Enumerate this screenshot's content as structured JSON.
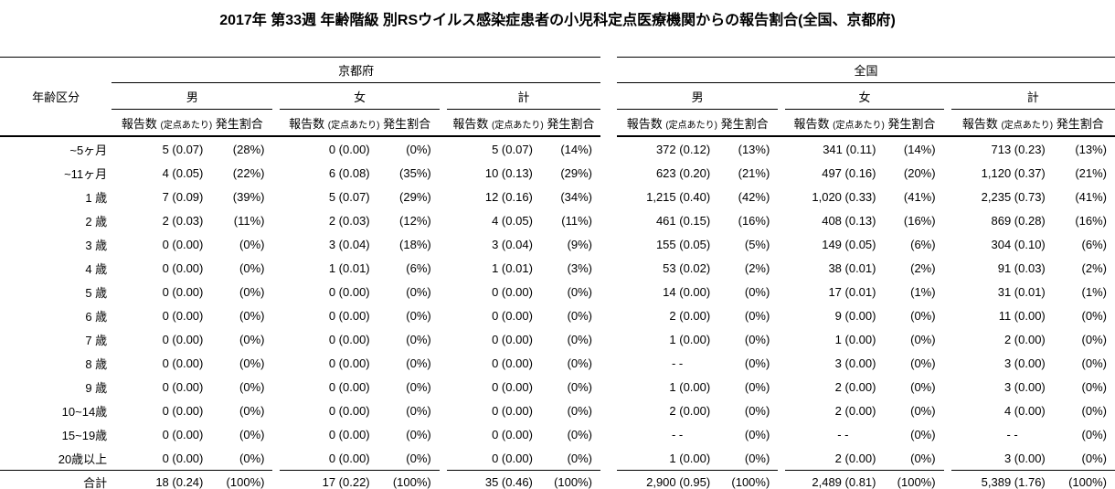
{
  "title": "2017年 第33週 年齢階級 別RSウイルス感染症患者の小児科定点医療機関からの報告割合(全国、京都府)",
  "table": {
    "age_header": "年齢区分",
    "region_kyoto": "京都府",
    "region_national": "全国",
    "gender_male": "男",
    "gender_female": "女",
    "gender_total": "計",
    "subheader_count": "報告数",
    "subheader_per": "(定点あたり)",
    "subheader_ratio": "発生割合"
  },
  "chart_data": {
    "type": "table",
    "title": "2017年 第33週 年齢階級 別RSウイルス感染症患者の小児科定点医療機関からの報告割合(全国、京都府)",
    "row_header": "年齢区分",
    "column_groups": [
      "京都府 男",
      "京都府 女",
      "京都府 計",
      "全国 男",
      "全国 女",
      "全国 計"
    ],
    "columns_per_group": [
      "報告数 (定点あたり)",
      "発生割合"
    ],
    "categories": [
      "~5ヶ月",
      "~11ヶ月",
      "1 歳",
      "2 歳",
      "3 歳",
      "4 歳",
      "5 歳",
      "6 歳",
      "7 歳",
      "8 歳",
      "9 歳",
      "10~14歳",
      "15~19歳",
      "20歳以上",
      "合計"
    ],
    "series": [
      {
        "name": "京都府 男 報告数(定点あたり)",
        "values": [
          "5 (0.07)",
          "4 (0.05)",
          "7 (0.09)",
          "2 (0.03)",
          "0 (0.00)",
          "0 (0.00)",
          "0 (0.00)",
          "0 (0.00)",
          "0 (0.00)",
          "0 (0.00)",
          "0 (0.00)",
          "0 (0.00)",
          "0 (0.00)",
          "0 (0.00)",
          "18 (0.24)"
        ]
      },
      {
        "name": "京都府 男 発生割合",
        "values": [
          "(28%)",
          "(22%)",
          "(39%)",
          "(11%)",
          "(0%)",
          "(0%)",
          "(0%)",
          "(0%)",
          "(0%)",
          "(0%)",
          "(0%)",
          "(0%)",
          "(0%)",
          "(0%)",
          "(100%)"
        ]
      },
      {
        "name": "京都府 女 報告数(定点あたり)",
        "values": [
          "0 (0.00)",
          "6 (0.08)",
          "5 (0.07)",
          "2 (0.03)",
          "3 (0.04)",
          "1 (0.01)",
          "0 (0.00)",
          "0 (0.00)",
          "0 (0.00)",
          "0 (0.00)",
          "0 (0.00)",
          "0 (0.00)",
          "0 (0.00)",
          "0 (0.00)",
          "17 (0.22)"
        ]
      },
      {
        "name": "京都府 女 発生割合",
        "values": [
          "(0%)",
          "(35%)",
          "(29%)",
          "(12%)",
          "(18%)",
          "(6%)",
          "(0%)",
          "(0%)",
          "(0%)",
          "(0%)",
          "(0%)",
          "(0%)",
          "(0%)",
          "(0%)",
          "(100%)"
        ]
      },
      {
        "name": "京都府 計 報告数(定点あたり)",
        "values": [
          "5 (0.07)",
          "10 (0.13)",
          "12 (0.16)",
          "4 (0.05)",
          "3 (0.04)",
          "1 (0.01)",
          "0 (0.00)",
          "0 (0.00)",
          "0 (0.00)",
          "0 (0.00)",
          "0 (0.00)",
          "0 (0.00)",
          "0 (0.00)",
          "0 (0.00)",
          "35 (0.46)"
        ]
      },
      {
        "name": "京都府 計 発生割合",
        "values": [
          "(14%)",
          "(29%)",
          "(34%)",
          "(11%)",
          "(9%)",
          "(3%)",
          "(0%)",
          "(0%)",
          "(0%)",
          "(0%)",
          "(0%)",
          "(0%)",
          "(0%)",
          "(0%)",
          "(100%)"
        ]
      },
      {
        "name": "全国 男 報告数(定点あたり)",
        "values": [
          "372 (0.12)",
          "623 (0.20)",
          "1,215 (0.40)",
          "461 (0.15)",
          "155 (0.05)",
          "53 (0.02)",
          "14 (0.00)",
          "2 (0.00)",
          "1 (0.00)",
          "- -",
          "1 (0.00)",
          "2 (0.00)",
          "- -",
          "1 (0.00)",
          "2,900 (0.95)"
        ]
      },
      {
        "name": "全国 男 発生割合",
        "values": [
          "(13%)",
          "(21%)",
          "(42%)",
          "(16%)",
          "(5%)",
          "(2%)",
          "(0%)",
          "(0%)",
          "(0%)",
          "(0%)",
          "(0%)",
          "(0%)",
          "(0%)",
          "(0%)",
          "(100%)"
        ]
      },
      {
        "name": "全国 女 報告数(定点あたり)",
        "values": [
          "341 (0.11)",
          "497 (0.16)",
          "1,020 (0.33)",
          "408 (0.13)",
          "149 (0.05)",
          "38 (0.01)",
          "17 (0.01)",
          "9 (0.00)",
          "1 (0.00)",
          "3 (0.00)",
          "2 (0.00)",
          "2 (0.00)",
          "- -",
          "2 (0.00)",
          "2,489 (0.81)"
        ]
      },
      {
        "name": "全国 女 発生割合",
        "values": [
          "(14%)",
          "(20%)",
          "(41%)",
          "(16%)",
          "(6%)",
          "(2%)",
          "(1%)",
          "(0%)",
          "(0%)",
          "(0%)",
          "(0%)",
          "(0%)",
          "(0%)",
          "(0%)",
          "(100%)"
        ]
      },
      {
        "name": "全国 計 報告数(定点あたり)",
        "values": [
          "713 (0.23)",
          "1,120 (0.37)",
          "2,235 (0.73)",
          "869 (0.28)",
          "304 (0.10)",
          "91 (0.03)",
          "31 (0.01)",
          "11 (0.00)",
          "2 (0.00)",
          "3 (0.00)",
          "3 (0.00)",
          "4 (0.00)",
          "- -",
          "3 (0.00)",
          "5,389 (1.76)"
        ]
      },
      {
        "name": "全国 計 発生割合",
        "values": [
          "(13%)",
          "(21%)",
          "(41%)",
          "(16%)",
          "(6%)",
          "(2%)",
          "(1%)",
          "(0%)",
          "(0%)",
          "(0%)",
          "(0%)",
          "(0%)",
          "(0%)",
          "(0%)",
          "(100%)"
        ]
      }
    ],
    "layout": {
      "grid": false,
      "borders": "horizontal-only",
      "total_row_label": "合計"
    }
  },
  "colors": {
    "text": "#000000",
    "background": "#ffffff",
    "rule": "#000000"
  }
}
